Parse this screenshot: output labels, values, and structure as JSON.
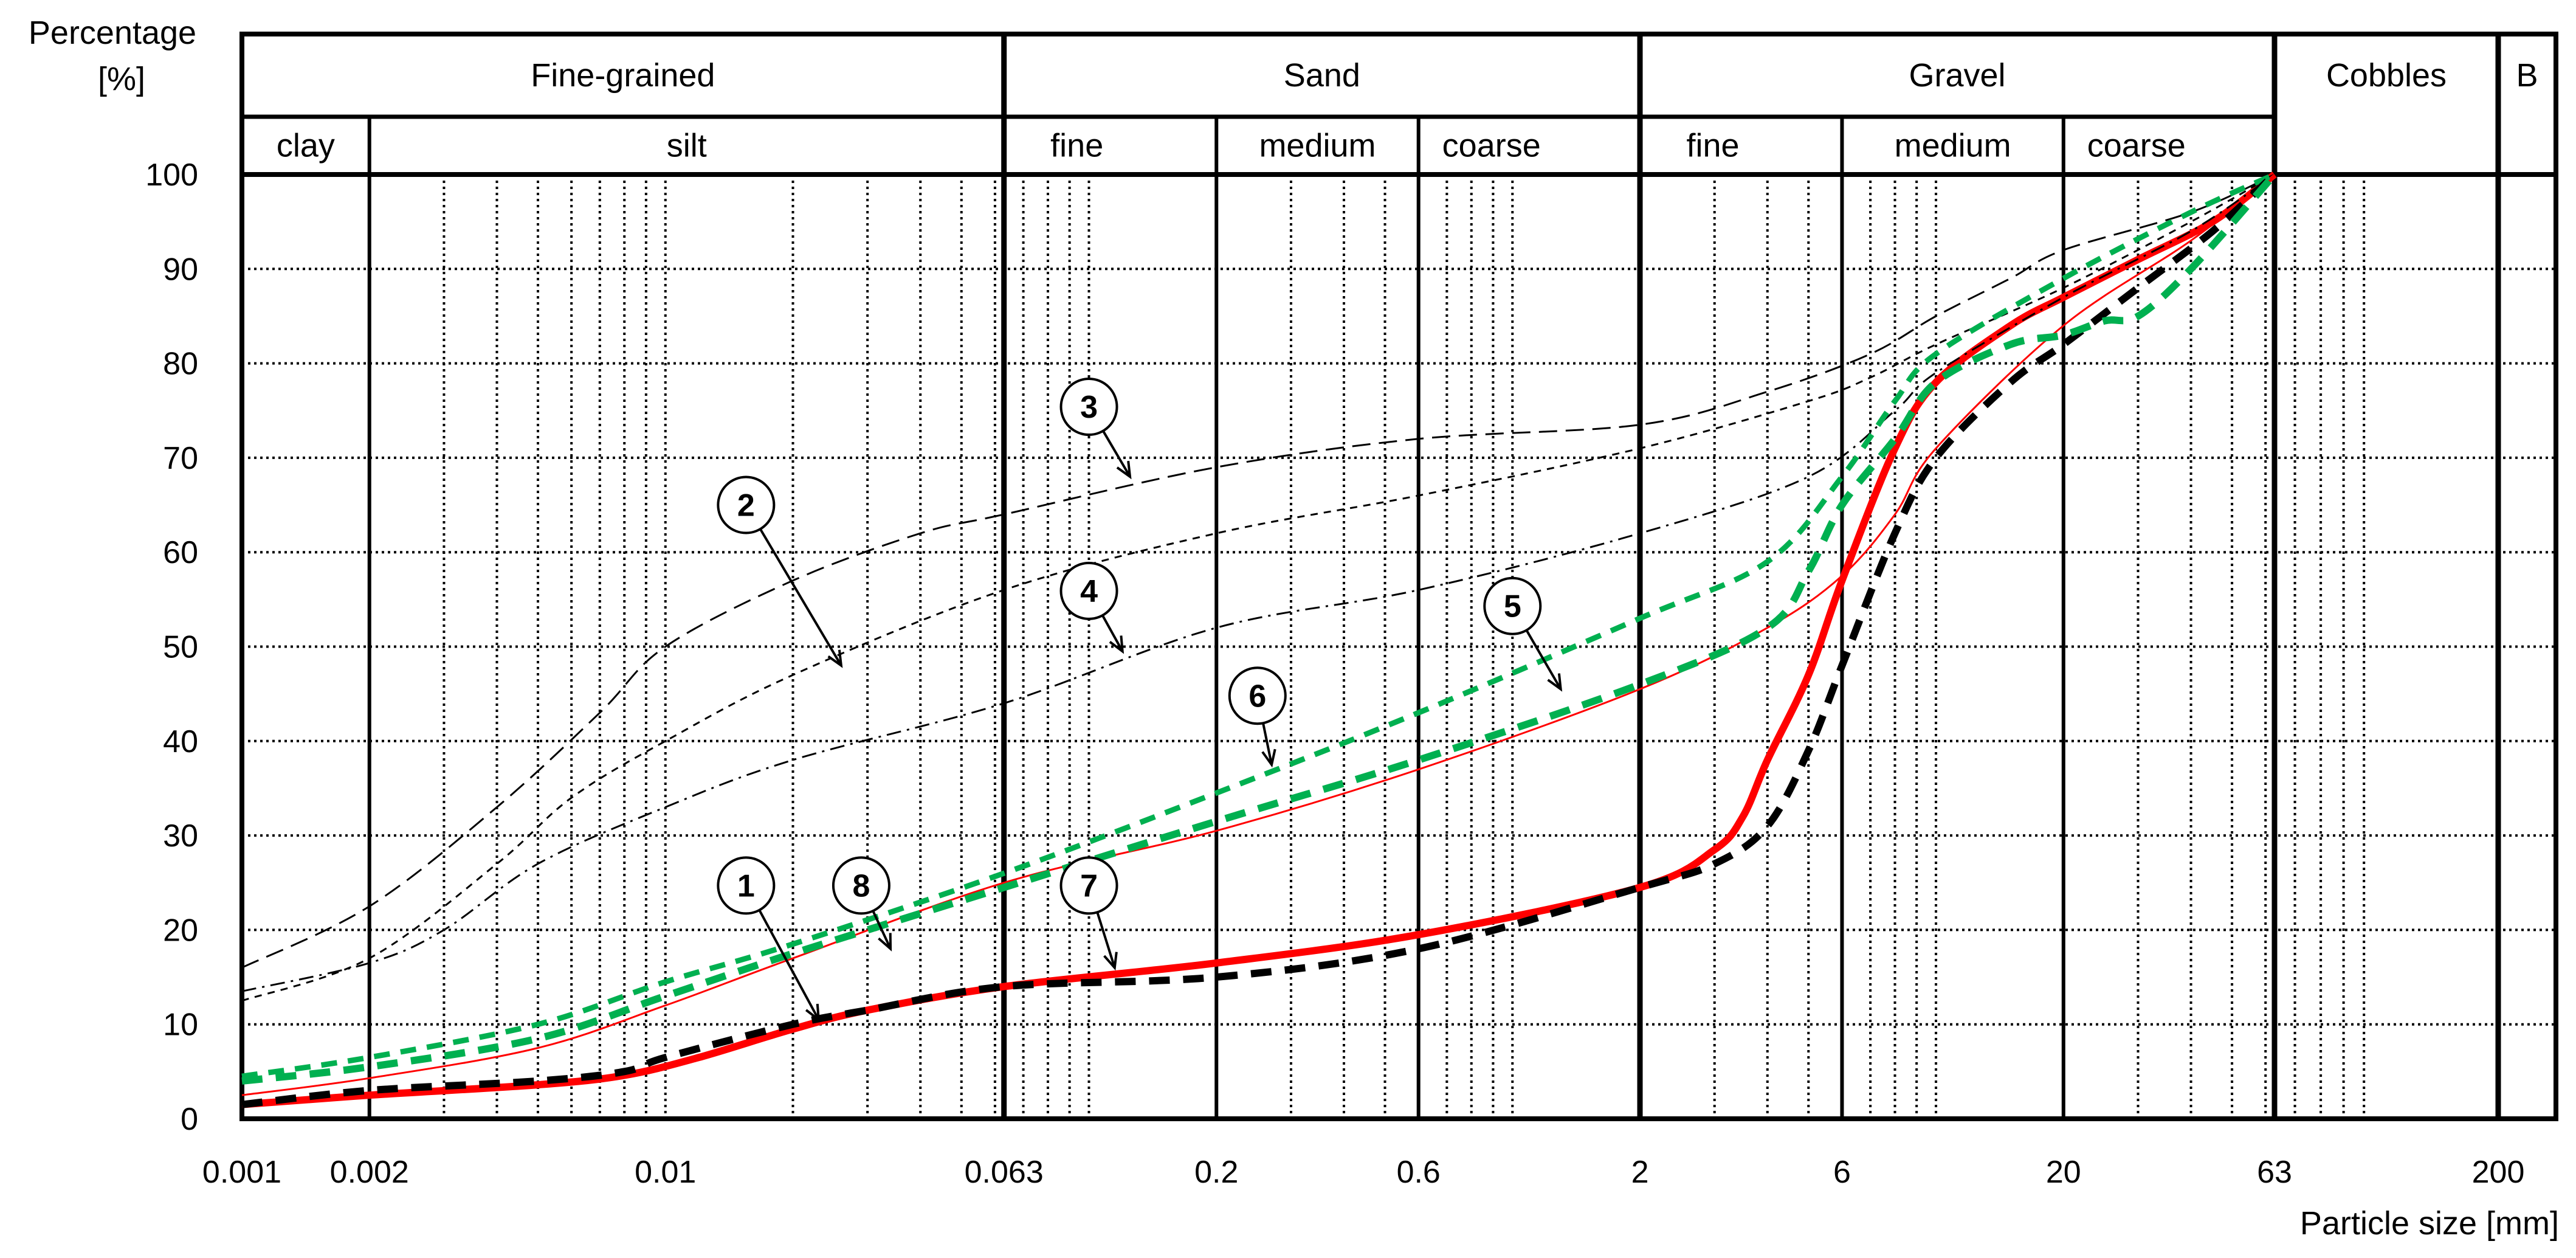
{
  "chart_data": {
    "type": "line",
    "y_title_line1": "Percentage",
    "y_title_line2": "[%]",
    "x_title": "Particle size [mm]",
    "xscale": "log",
    "xlim": [
      0.001,
      200
    ],
    "ylim": [
      0,
      100
    ],
    "grid": true,
    "x_ticks": [
      {
        "value": 0.001,
        "label": "0.001"
      },
      {
        "value": 0.002,
        "label": "0.002"
      },
      {
        "value": 0.01,
        "label": "0.01"
      },
      {
        "value": 0.063,
        "label": "0.063"
      },
      {
        "value": 0.2,
        "label": "0.2"
      },
      {
        "value": 0.6,
        "label": "0.6"
      },
      {
        "value": 2,
        "label": "2"
      },
      {
        "value": 6,
        "label": "6"
      },
      {
        "value": 20,
        "label": "20"
      },
      {
        "value": 63,
        "label": "63"
      },
      {
        "value": 200,
        "label": "200"
      }
    ],
    "y_ticks": [
      {
        "value": 0,
        "label": "0"
      },
      {
        "value": 10,
        "label": "10"
      },
      {
        "value": 20,
        "label": "20"
      },
      {
        "value": 30,
        "label": "30"
      },
      {
        "value": 40,
        "label": "40"
      },
      {
        "value": 50,
        "label": "50"
      },
      {
        "value": 60,
        "label": "60"
      },
      {
        "value": 70,
        "label": "70"
      },
      {
        "value": 80,
        "label": "80"
      },
      {
        "value": 90,
        "label": "90"
      },
      {
        "value": 100,
        "label": "100"
      }
    ],
    "header_top": [
      {
        "label": "Fine-grained",
        "from": 0.001,
        "to": 0.063
      },
      {
        "label": "Sand",
        "from": 0.063,
        "to": 2
      },
      {
        "label": "Gravel",
        "from": 2,
        "to": 63
      },
      {
        "label": "Cobbles",
        "from": 63,
        "to": 200
      },
      {
        "label": "B",
        "from": 200,
        "to": 300
      }
    ],
    "header_sub": [
      {
        "label": "clay",
        "from": 0.001,
        "to": 0.002
      },
      {
        "label": "silt",
        "from": 0.002,
        "to": 0.063
      },
      {
        "label": "fine",
        "from": 0.063,
        "to": 0.2
      },
      {
        "label": "medium",
        "from": 0.2,
        "to": 0.6
      },
      {
        "label": "coarse",
        "from": 0.6,
        "to": 2
      },
      {
        "label": "fine",
        "from": 2,
        "to": 6
      },
      {
        "label": "medium",
        "from": 6,
        "to": 20
      },
      {
        "label": "coarse",
        "from": 20,
        "to": 63
      }
    ],
    "series": [
      {
        "label": "1",
        "color": "#ff0000",
        "style": "solid",
        "weight": "bold",
        "points": [
          [
            0.001,
            1.5
          ],
          [
            0.002,
            2.5
          ],
          [
            0.005,
            3.6
          ],
          [
            0.008,
            4.6
          ],
          [
            0.012,
            6.5
          ],
          [
            0.02,
            9.5
          ],
          [
            0.03,
            11.5
          ],
          [
            0.063,
            14.0
          ],
          [
            0.2,
            16.5
          ],
          [
            0.6,
            19.5
          ],
          [
            2,
            24.5
          ],
          [
            3,
            28.5
          ],
          [
            3.5,
            32.0
          ],
          [
            4,
            38.0
          ],
          [
            5,
            47.0
          ],
          [
            6,
            57.0
          ],
          [
            8,
            71.0
          ],
          [
            10,
            78.0
          ],
          [
            15,
            84.0
          ],
          [
            20,
            87.0
          ],
          [
            30,
            91.0
          ],
          [
            45,
            95.0
          ],
          [
            63,
            100.0
          ]
        ],
        "marker_at": [
          0.023,
          10.5
        ],
        "marker_bubble": [
          0.0155,
          24.7
        ]
      },
      {
        "label": "2",
        "color": "#000000",
        "style": "dash",
        "weight": "thin",
        "points": [
          [
            0.001,
            12.5
          ],
          [
            0.002,
            17.0
          ],
          [
            0.004,
            27.0
          ],
          [
            0.006,
            34.0
          ],
          [
            0.01,
            40.0
          ],
          [
            0.02,
            47.0
          ],
          [
            0.063,
            56.0
          ],
          [
            0.2,
            62.0
          ],
          [
            0.6,
            66.0
          ],
          [
            2,
            71.0
          ],
          [
            5,
            76.0
          ],
          [
            7,
            78.5
          ],
          [
            10,
            82.0
          ],
          [
            20,
            88.0
          ],
          [
            40,
            95.0
          ],
          [
            63,
            100.0
          ]
        ],
        "marker_at": [
          0.026,
          48.0
        ],
        "marker_bubble": [
          0.0155,
          65.0
        ]
      },
      {
        "label": "3",
        "color": "#000000",
        "style": "longdash",
        "weight": "thin",
        "points": [
          [
            0.001,
            16.0
          ],
          [
            0.002,
            22.5
          ],
          [
            0.004,
            33.0
          ],
          [
            0.007,
            43.0
          ],
          [
            0.01,
            50.0
          ],
          [
            0.02,
            57.0
          ],
          [
            0.04,
            62.0
          ],
          [
            0.063,
            64.0
          ],
          [
            0.2,
            69.0
          ],
          [
            0.6,
            72.0
          ],
          [
            2,
            73.5
          ],
          [
            4,
            77.0
          ],
          [
            7,
            81.0
          ],
          [
            10,
            85.0
          ],
          [
            15,
            89.0
          ],
          [
            20,
            92.0
          ],
          [
            40,
            96.0
          ],
          [
            63,
            100.0
          ]
        ],
        "marker_at": [
          0.125,
          68.0
        ],
        "marker_bubble": [
          0.1,
          75.4
        ]
      },
      {
        "label": "4",
        "color": "#000000",
        "style": "dashdot",
        "weight": "thin",
        "points": [
          [
            0.001,
            13.5
          ],
          [
            0.002,
            16.5
          ],
          [
            0.003,
            20.0
          ],
          [
            0.005,
            27.0
          ],
          [
            0.01,
            33.0
          ],
          [
            0.02,
            38.0
          ],
          [
            0.063,
            44.0
          ],
          [
            0.2,
            52.0
          ],
          [
            0.6,
            56.0
          ],
          [
            2,
            62.0
          ],
          [
            5,
            68.0
          ],
          [
            8,
            75.0
          ],
          [
            10,
            79.0
          ],
          [
            20,
            87.0
          ],
          [
            40,
            94.0
          ],
          [
            63,
            100.0
          ]
        ],
        "marker_at": [
          0.12,
          49.5
        ],
        "marker_bubble": [
          0.1,
          55.9
        ]
      },
      {
        "label": "5",
        "color": "#ff0000",
        "style": "solid",
        "weight": "thin",
        "points": [
          [
            0.001,
            2.5
          ],
          [
            0.002,
            4.3
          ],
          [
            0.005,
            7.5
          ],
          [
            0.01,
            12.0
          ],
          [
            0.02,
            17.0
          ],
          [
            0.063,
            25.0
          ],
          [
            0.2,
            30.5
          ],
          [
            0.6,
            37.0
          ],
          [
            2,
            45.5
          ],
          [
            4,
            52.0
          ],
          [
            6,
            57.5
          ],
          [
            8,
            64.0
          ],
          [
            10,
            71.0
          ],
          [
            20,
            84.0
          ],
          [
            40,
            93.0
          ],
          [
            63,
            100.0
          ]
        ],
        "marker_at": [
          1.3,
          45.5
        ],
        "marker_bubble": [
          1.0,
          54.3
        ]
      },
      {
        "label": "6",
        "color": "#00b050",
        "style": "dash",
        "weight": "medium",
        "points": [
          [
            0.001,
            4.5
          ],
          [
            0.002,
            6.5
          ],
          [
            0.005,
            10.0
          ],
          [
            0.01,
            14.5
          ],
          [
            0.02,
            18.5
          ],
          [
            0.063,
            26.0
          ],
          [
            0.2,
            34.5
          ],
          [
            0.6,
            43.0
          ],
          [
            2,
            53.0
          ],
          [
            4,
            59.0
          ],
          [
            6,
            68.0
          ],
          [
            8,
            76.0
          ],
          [
            10,
            81.0
          ],
          [
            20,
            89.0
          ],
          [
            40,
            96.0
          ],
          [
            63,
            100.0
          ]
        ],
        "marker_at": [
          0.27,
          37.5
        ],
        "marker_bubble": [
          0.25,
          44.8
        ]
      },
      {
        "label": "7",
        "color": "#000000",
        "style": "dash",
        "weight": "bold",
        "points": [
          [
            0.001,
            1.5
          ],
          [
            0.002,
            3.0
          ],
          [
            0.005,
            4.0
          ],
          [
            0.008,
            5.0
          ],
          [
            0.01,
            6.5
          ],
          [
            0.02,
            10.0
          ],
          [
            0.03,
            11.5
          ],
          [
            0.063,
            14.0
          ],
          [
            0.2,
            15.0
          ],
          [
            0.6,
            18.0
          ],
          [
            2,
            24.5
          ],
          [
            3,
            27.0
          ],
          [
            4,
            31.0
          ],
          [
            5,
            39.0
          ],
          [
            6,
            48.0
          ],
          [
            8,
            62.0
          ],
          [
            10,
            70.0
          ],
          [
            15,
            78.0
          ],
          [
            20,
            82.0
          ],
          [
            30,
            88.0
          ],
          [
            45,
            94.0
          ],
          [
            63,
            100.0
          ]
        ],
        "marker_at": [
          0.115,
          16.0
        ],
        "marker_bubble": [
          0.1,
          24.7
        ]
      },
      {
        "label": "8",
        "color": "#00b050",
        "style": "dash",
        "weight": "bold",
        "points": [
          [
            0.001,
            4.0
          ],
          [
            0.002,
            5.5
          ],
          [
            0.005,
            8.5
          ],
          [
            0.01,
            13.0
          ],
          [
            0.02,
            17.5
          ],
          [
            0.063,
            24.5
          ],
          [
            0.2,
            31.5
          ],
          [
            0.6,
            38.0
          ],
          [
            2,
            46.0
          ],
          [
            4,
            52.0
          ],
          [
            5,
            58.0
          ],
          [
            6,
            65.0
          ],
          [
            8,
            72.0
          ],
          [
            10,
            78.0
          ],
          [
            15,
            82.0
          ],
          [
            20,
            83.0
          ],
          [
            25,
            84.5
          ],
          [
            30,
            85.0
          ],
          [
            40,
            90.0
          ],
          [
            63,
            100.0
          ]
        ],
        "marker_at": [
          0.034,
          18.0
        ],
        "marker_bubble": [
          0.029,
          24.7
        ]
      }
    ]
  }
}
